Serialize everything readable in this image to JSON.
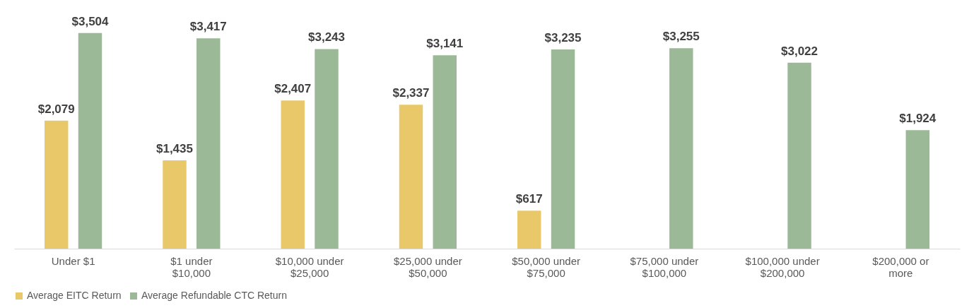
{
  "chart_data": {
    "type": "bar",
    "categories": [
      "Under $1",
      "$1 under $10,000",
      "$10,000 under $25,000",
      "$25,000 under $50,000",
      "$50,000 under $75,000",
      "$75,000 under $100,000",
      "$100,000 under $200,000",
      "$200,000 or more"
    ],
    "series": [
      {
        "name": "Average EITC Return",
        "color": "#e9c86a",
        "values": [
          2079,
          1435,
          2407,
          2337,
          617,
          null,
          null,
          null
        ],
        "value_labels": [
          "$2,079",
          "$1,435",
          "$2,407",
          "$2,337",
          "$617",
          null,
          null,
          null
        ]
      },
      {
        "name": "Average Refundable CTC Return",
        "color": "#9bb997",
        "values": [
          3504,
          3417,
          3243,
          3141,
          3235,
          3255,
          3022,
          1924
        ],
        "value_labels": [
          "$3,504",
          "$3,417",
          "$3,243",
          "$3,141",
          "$3,235",
          "$3,255",
          "$3,022",
          "$1,924"
        ]
      }
    ],
    "legend": "bottom",
    "grid": false
  }
}
